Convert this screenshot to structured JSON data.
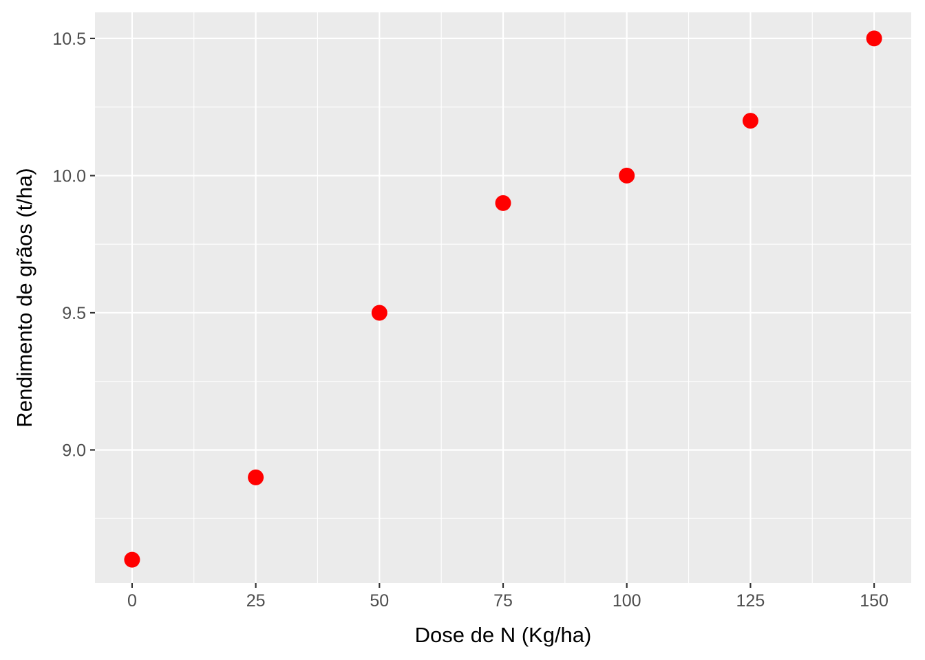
{
  "chart_data": {
    "type": "scatter",
    "title": "",
    "xlabel": "Dose de N (Kg/ha)",
    "ylabel": "Rendimento de grãos (t/ha)",
    "x": [
      0,
      25,
      50,
      75,
      100,
      125,
      150
    ],
    "y": [
      8.6,
      8.9,
      9.5,
      9.9,
      10.0,
      10.2,
      10.5
    ],
    "xlim": [
      -7.5,
      157.5
    ],
    "ylim": [
      8.515,
      10.595
    ],
    "x_ticks": [
      0,
      25,
      50,
      75,
      100,
      125,
      150
    ],
    "x_tick_labels": [
      "0",
      "25",
      "50",
      "75",
      "100",
      "125",
      "150"
    ],
    "y_ticks": [
      9.0,
      9.5,
      10.0,
      10.5
    ],
    "y_tick_labels": [
      "9.0",
      "9.5",
      "10.0",
      "10.5"
    ],
    "grid": true,
    "legend": "none",
    "colors": {
      "point": "#ff0000",
      "panel_background": "#ebebeb",
      "grid_major": "#ffffff",
      "grid_minor": "#ffffff"
    }
  }
}
